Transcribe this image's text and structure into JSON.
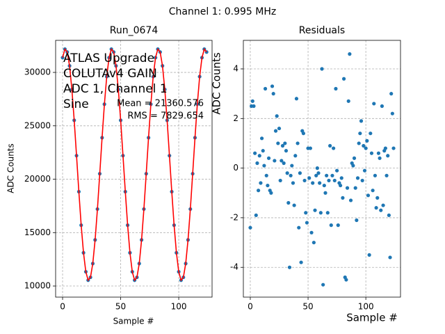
{
  "title": "Channel 1: 0.995 MHz",
  "chart_data": [
    {
      "type": "line",
      "title": "Run_0674",
      "xlabel": "Sample #",
      "ylabel": "ADC Counts",
      "annotations": [
        "ATLAS Upgrade",
        "COLUTAv4 GAIN",
        "ADC 1, Channel 1",
        "Sine",
        "Mean = 21360.576",
        "RMS = 7829.654"
      ],
      "x": [
        0,
        2,
        4,
        6,
        8,
        10,
        12,
        14,
        16,
        18,
        20,
        22,
        24,
        26,
        28,
        30,
        32,
        34,
        36,
        38,
        40,
        42,
        44,
        46,
        48,
        50,
        52,
        54,
        56,
        58,
        60,
        62,
        64,
        66,
        68,
        70,
        72,
        74,
        76,
        78,
        80,
        82,
        84,
        86,
        88,
        90,
        92,
        94,
        96,
        98,
        100,
        102,
        104,
        106,
        108,
        110,
        112,
        114,
        116,
        118,
        120,
        122,
        124
      ],
      "series": [
        {
          "color": "#1f77b4",
          "style": "markers",
          "values": [
            31385,
            32178,
            31907,
            30615,
            28402,
            25515,
            22206,
            18832,
            15696,
            13114,
            11335,
            10542,
            10813,
            12105,
            14318,
            17205,
            20514,
            23888,
            27024,
            29606,
            31385,
            32178,
            31907,
            30615,
            28402,
            25515,
            22206,
            18832,
            15696,
            13114,
            11335,
            10542,
            10813,
            12105,
            14318,
            17205,
            20514,
            23888,
            27024,
            29606,
            31385,
            32178,
            31907,
            30615,
            28402,
            25515,
            22206,
            18832,
            15696,
            13114,
            11335,
            10542,
            10813,
            12105,
            14318,
            17205,
            20514,
            23888,
            27024,
            29606,
            31385,
            32178,
            31907
          ]
        },
        {
          "color": "#ff0000",
          "style": "line",
          "values": [
            31385,
            32178,
            31907,
            30615,
            28402,
            25515,
            22206,
            18832,
            15696,
            13114,
            11335,
            10542,
            10813,
            12105,
            14318,
            17205,
            20514,
            23888,
            27024,
            29606,
            31385,
            32178,
            31907,
            30615,
            28402,
            25515,
            22206,
            18832,
            15696,
            13114,
            11335,
            10542,
            10813,
            12105,
            14318,
            17205,
            20514,
            23888,
            27024,
            29606,
            31385,
            32178,
            31907,
            30615,
            28402,
            25515,
            22206,
            18832,
            15696,
            13114,
            11335,
            10542,
            10813,
            12105,
            14318,
            17205,
            20514,
            23888,
            27024,
            29606,
            31385,
            32178,
            31907
          ]
        }
      ],
      "xlim": [
        -6,
        128.7
      ],
      "xticks": [
        0,
        50,
        100
      ],
      "ylim": [
        8960,
        33000
      ],
      "yticks": [
        10000,
        15000,
        20000,
        25000,
        30000
      ],
      "grid": true
    },
    {
      "type": "scatter",
      "title": "Residuals",
      "xlabel": "Sample #",
      "ylabel": "ADC Counts",
      "x": [
        0,
        1,
        2,
        3,
        4,
        5,
        6,
        7,
        8,
        9,
        10,
        11,
        12,
        13,
        14,
        15,
        16,
        17,
        18,
        19,
        20,
        21,
        22,
        23,
        24,
        25,
        26,
        27,
        28,
        29,
        30,
        31,
        32,
        33,
        34,
        35,
        36,
        37,
        38,
        39,
        40,
        41,
        42,
        43,
        44,
        45,
        46,
        47,
        48,
        49,
        50,
        51,
        52,
        53,
        54,
        55,
        56,
        57,
        58,
        59,
        60,
        61,
        62,
        63,
        64,
        65,
        66,
        67,
        68,
        69,
        70,
        71,
        72,
        73,
        74,
        75,
        76,
        77,
        78,
        79,
        80,
        81,
        82,
        83,
        84,
        85,
        86,
        87,
        88,
        89,
        90,
        91,
        92,
        93,
        94,
        95,
        96,
        97,
        98,
        99,
        100,
        101,
        102,
        103,
        104,
        105,
        106,
        107,
        108,
        109,
        110,
        111,
        112,
        113,
        114,
        115,
        116,
        117,
        118,
        119,
        120,
        121,
        122,
        123,
        124
      ],
      "series": [
        {
          "color": "#1f77b4",
          "style": "markers",
          "values": [
            -2.4,
            2.5,
            2.7,
            2.5,
            0.6,
            -1.9,
            0.2,
            -0.9,
            0.5,
            -0.6,
            1.2,
            0.7,
            0.1,
            3.2,
            -0.3,
            -0.7,
            0.4,
            -0.9,
            -1.0,
            3.3,
            3.0,
            0.3,
            1.5,
            2.1,
            1.0,
            1.6,
            -0.5,
            0.3,
            0.9,
            0.2,
            1.0,
            0.7,
            -0.2,
            -1.4,
            -4.0,
            -0.3,
            0.1,
            -0.6,
            -1.5,
            0.5,
            2.8,
            1.0,
            -2.4,
            -0.2,
            -3.8,
            1.5,
            1.4,
            -0.5,
            -1.8,
            -2.2,
            0.8,
            -0.4,
            0.8,
            -2.6,
            -0.6,
            -3.0,
            -1.7,
            -0.3,
            0.0,
            -0.2,
            -0.6,
            -1.8,
            4.0,
            -4.7,
            -0.7,
            -1.0,
            -0.3,
            -1.8,
            -0.5,
            0.9,
            -2.3,
            -0.3,
            0.8,
            -0.5,
            3.2,
            -0.1,
            -2.3,
            -0.6,
            -0.7,
            -0.4,
            -1.2,
            3.6,
            -4.4,
            -4.5,
            -0.8,
            2.7,
            4.6,
            -1.3,
            0.2,
            0.1,
            0.4,
            -0.8,
            -2.1,
            -0.4,
            1.0,
            1.4,
            1.9,
            -0.5,
            0.9,
            -0.1,
            0.8,
            1.1,
            -1.1,
            -3.5,
            1.4,
            0.6,
            -0.9,
            2.6,
            -0.3,
            -1.6,
            -1.2,
            0.6,
            0.4,
            -1.7,
            2.5,
            -1.5,
            0.7,
            0.8,
            -0.3,
            0.5,
            -1.9,
            -3.6,
            3.0,
            2.2,
            0.8
          ]
        }
      ],
      "xlim": [
        -6,
        130
      ],
      "xticks": [
        0,
        50,
        100
      ],
      "ylim": [
        -5.2,
        5.15
      ],
      "yticks": [
        -4,
        -2,
        0,
        2,
        4
      ],
      "grid": true
    }
  ]
}
